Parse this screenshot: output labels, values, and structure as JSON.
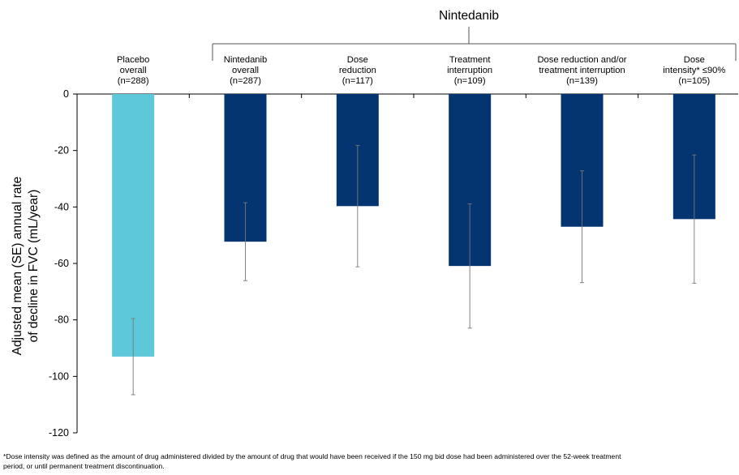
{
  "chart_data": {
    "type": "bar",
    "group_label": "Nintedanib",
    "ylabel_lines": [
      "Adjusted mean (SE) annual rate",
      "of decline in FVC (mL/year)"
    ],
    "ylim": [
      -120,
      0
    ],
    "yticks": [
      0,
      -20,
      -40,
      -60,
      -80,
      -100,
      -120
    ],
    "grid": false,
    "categories": [
      {
        "lines": [
          "Placebo",
          "overall",
          "(n=288)"
        ],
        "value": -93,
        "se": 13.5,
        "color": "#5ec8db"
      },
      {
        "lines": [
          "Nintedanib",
          "overall",
          "(n=287)"
        ],
        "value": -52.3,
        "se": 13.8,
        "color": "#053570"
      },
      {
        "lines": [
          "Dose",
          "reduction",
          "(n=117)"
        ],
        "value": -39.7,
        "se": 21.5,
        "color": "#053570"
      },
      {
        "lines": [
          "Treatment",
          "interruption",
          "(n=109)"
        ],
        "value": -60.9,
        "se": 22,
        "color": "#053570"
      },
      {
        "lines": [
          "Dose reduction and/or",
          "treatment interruption",
          "(n=139)"
        ],
        "value": -47,
        "se": 19.8,
        "color": "#053570"
      },
      {
        "lines": [
          "Dose",
          "intensity* ≤90%",
          "(n=105)"
        ],
        "value": -44.3,
        "se": 22.7,
        "color": "#053570"
      }
    ]
  },
  "footnote": {
    "line1": "*Dose intensity was defined as the amount of drug administered divided by the amount of drug that would have been received if the 150 mg bid dose had been administered over the 52-week treatment",
    "line2": "period, or until permanent treatment discontinuation."
  }
}
